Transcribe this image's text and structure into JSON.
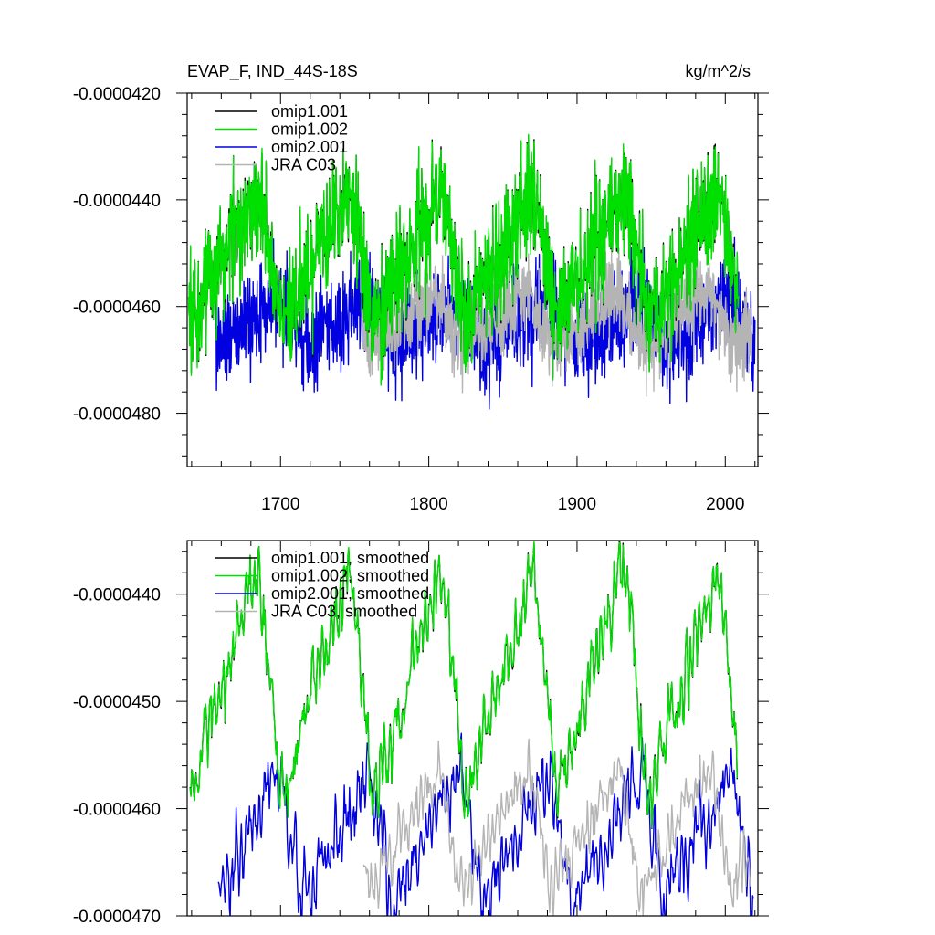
{
  "chart_data": [
    {
      "type": "line",
      "title": "EVAP_F, IND_44S-18S",
      "units": "kg/m^2/s",
      "xlabel": "",
      "ylabel": "",
      "xlim": [
        1637,
        2022
      ],
      "ylim": [
        -4.9e-05,
        -4.2e-05
      ],
      "x_ticks": [
        1700,
        1800,
        1900,
        2000
      ],
      "x_tick_labels": [
        "1700",
        "1800",
        "1900",
        "2000"
      ],
      "y_ticks": [
        -4.2e-05,
        -4.4e-05,
        -4.6e-05,
        -4.8e-05
      ],
      "y_tick_labels": [
        "-0.0000420",
        "-0.0000440",
        "-0.0000460",
        "-0.0000480"
      ],
      "legend_position": "top-left",
      "series": [
        {
          "name": "omip1.001",
          "color": "#000000",
          "x_start": 1638,
          "x_end": 2009,
          "cycle_years": 62,
          "cycle_start": 1700,
          "low": -4.63e-05,
          "high": -4.38e-05,
          "sigma": 9e-07
        },
        {
          "name": "omip1.002",
          "color": "#00e000",
          "x_start": 1638,
          "x_end": 2009,
          "cycle_years": 62,
          "cycle_start": 1700,
          "low": -4.63e-05,
          "high": -4.38e-05,
          "sigma": 9e-07
        },
        {
          "name": "omip2.001",
          "color": "#0000e0",
          "x_start": 1656,
          "x_end": 2020,
          "cycle_years": 61,
          "cycle_start": 1715,
          "low": -4.68e-05,
          "high": -4.58e-05,
          "sigma": 7e-07
        },
        {
          "name": "JRA C03",
          "color": "#b4b4b4",
          "x_start": 1755,
          "x_end": 2018,
          "cycle_years": 61,
          "cycle_start": 1760,
          "low": -4.68e-05,
          "high": -4.57e-05,
          "sigma": 6e-07
        }
      ]
    },
    {
      "type": "line",
      "title": "",
      "xlabel": "",
      "ylabel": "",
      "xlim": [
        1637,
        2022
      ],
      "ylim": [
        -4.7e-05,
        -4.35e-05
      ],
      "x_ticks": [
        1700,
        1800,
        1900,
        2000
      ],
      "y_ticks": [
        -4.4e-05,
        -4.5e-05,
        -4.6e-05,
        -4.7e-05
      ],
      "y_tick_labels": [
        "-0.0000440",
        "-0.0000450",
        "-0.0000460",
        "-0.0000470"
      ],
      "legend_position": "top-left",
      "series": [
        {
          "name": "omip1.001, smoothed",
          "color": "#000000",
          "x_start": 1639,
          "x_end": 2008,
          "cycle_years": 62,
          "cycle_start": 1700,
          "low": -4.59e-05,
          "high": -4.37e-05,
          "sigma": 3e-07
        },
        {
          "name": "omip1.002, smoothed",
          "color": "#00e000",
          "x_start": 1639,
          "x_end": 2008,
          "cycle_years": 62,
          "cycle_start": 1700,
          "low": -4.59e-05,
          "high": -4.37e-05,
          "sigma": 3e-07
        },
        {
          "name": "omip2.001, smoothed",
          "color": "#0000e0",
          "x_start": 1658,
          "x_end": 2019,
          "cycle_years": 61,
          "cycle_start": 1714,
          "low": -4.69e-05,
          "high": -4.56e-05,
          "sigma": 3e-07
        },
        {
          "name": "JRA C03, smoothed",
          "color": "#b4b4b4",
          "x_start": 1756,
          "x_end": 2017,
          "cycle_years": 61,
          "cycle_start": 1760,
          "low": -4.68e-05,
          "high": -4.56e-05,
          "sigma": 2.5e-07
        }
      ]
    }
  ]
}
